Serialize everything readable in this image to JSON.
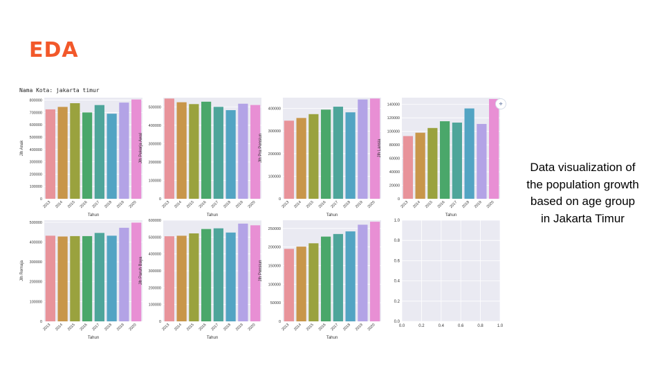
{
  "header": {
    "title": "EDA",
    "caption": "Nama Kota: jakarta timur"
  },
  "side_text": "Data visualization of the population growth based on age group in Jakarta Timur",
  "icons": {
    "lens": "lens-search-icon"
  },
  "palette": [
    "#e8939a",
    "#c8964a",
    "#9aa23e",
    "#4aa76a",
    "#4ea59a",
    "#52a4c3",
    "#b3a3e6",
    "#e88fd4"
  ],
  "chart_data": [
    {
      "type": "bar",
      "categories": [
        "2013",
        "2014",
        "2015",
        "2016",
        "2017",
        "2018",
        "2019",
        "2020"
      ],
      "values": [
        725000,
        745000,
        775000,
        700000,
        760000,
        690000,
        780000,
        805000
      ],
      "xlabel": "Tahun",
      "ylabel": "Jlh Anak",
      "ylim": [
        0,
        820000
      ],
      "yticks": [
        0,
        100000,
        200000,
        300000,
        400000,
        500000,
        600000,
        700000,
        800000
      ]
    },
    {
      "type": "bar",
      "categories": [
        "2013",
        "2014",
        "2015",
        "2016",
        "2017",
        "2018",
        "2019",
        "2020"
      ],
      "values": [
        545000,
        525000,
        515000,
        528000,
        500000,
        482000,
        517000,
        510000
      ],
      "xlabel": "Tahun",
      "ylabel": "Jlh Pekerja Awal",
      "ylim": [
        0,
        550000
      ],
      "yticks": [
        0,
        100000,
        200000,
        300000,
        400000,
        500000
      ]
    },
    {
      "type": "bar",
      "categories": [
        "2013",
        "2014",
        "2015",
        "2016",
        "2017",
        "2018",
        "2019",
        "2020"
      ],
      "values": [
        346000,
        358000,
        375000,
        395000,
        408000,
        383000,
        440000,
        444000
      ],
      "xlabel": "Tahun",
      "ylabel": "Jlh Pra Pensiun",
      "ylim": [
        0,
        448000
      ],
      "yticks": [
        0,
        100000,
        200000,
        300000,
        400000
      ]
    },
    {
      "type": "bar",
      "categories": [
        "2013",
        "2014",
        "2015",
        "2016",
        "2017",
        "2018",
        "2019",
        "2020"
      ],
      "values": [
        93000,
        98000,
        105000,
        115000,
        113000,
        134000,
        111000,
        148000
      ],
      "xlabel": "Tahun",
      "ylabel": "Jlh Lansia",
      "ylim": [
        0,
        150000
      ],
      "yticks": [
        0,
        20000,
        40000,
        60000,
        80000,
        100000,
        120000,
        140000
      ]
    },
    {
      "type": "bar",
      "categories": [
        "2013",
        "2014",
        "2015",
        "2016",
        "2017",
        "2018",
        "2019",
        "2020"
      ],
      "values": [
        432000,
        428000,
        430000,
        430000,
        446000,
        432000,
        472000,
        498000
      ],
      "xlabel": "Tahun",
      "ylabel": "Jlh Remaja",
      "ylim": [
        0,
        510000
      ],
      "yticks": [
        0,
        100000,
        200000,
        300000,
        400000,
        500000
      ]
    },
    {
      "type": "bar",
      "categories": [
        "2013",
        "2014",
        "2015",
        "2016",
        "2017",
        "2018",
        "2019",
        "2020"
      ],
      "values": [
        505000,
        508000,
        522000,
        548000,
        552000,
        527000,
        580000,
        570000
      ],
      "xlabel": "Tahun",
      "ylabel": "Jlh Paruh Baya",
      "ylim": [
        0,
        600000
      ],
      "yticks": [
        0,
        100000,
        200000,
        300000,
        400000,
        500000,
        600000
      ]
    },
    {
      "type": "bar",
      "categories": [
        "2013",
        "2014",
        "2015",
        "2016",
        "2017",
        "2018",
        "2019",
        "2020"
      ],
      "values": [
        195000,
        201000,
        210000,
        228000,
        235000,
        242000,
        260000,
        268000
      ],
      "xlabel": "Tahun",
      "ylabel": "Jlh Pensiun",
      "ylim": [
        0,
        272000
      ],
      "yticks": [
        0,
        50000,
        100000,
        150000,
        200000,
        250000
      ]
    },
    {
      "type": "empty",
      "xlim": [
        0,
        1
      ],
      "ylim": [
        0,
        1
      ],
      "xticks": [
        "0.0",
        "0.2",
        "0.4",
        "0.6",
        "0.8",
        "1.0"
      ],
      "yticks": [
        "0.0",
        "0.2",
        "0.4",
        "0.6",
        "0.8",
        "1.0"
      ]
    }
  ]
}
